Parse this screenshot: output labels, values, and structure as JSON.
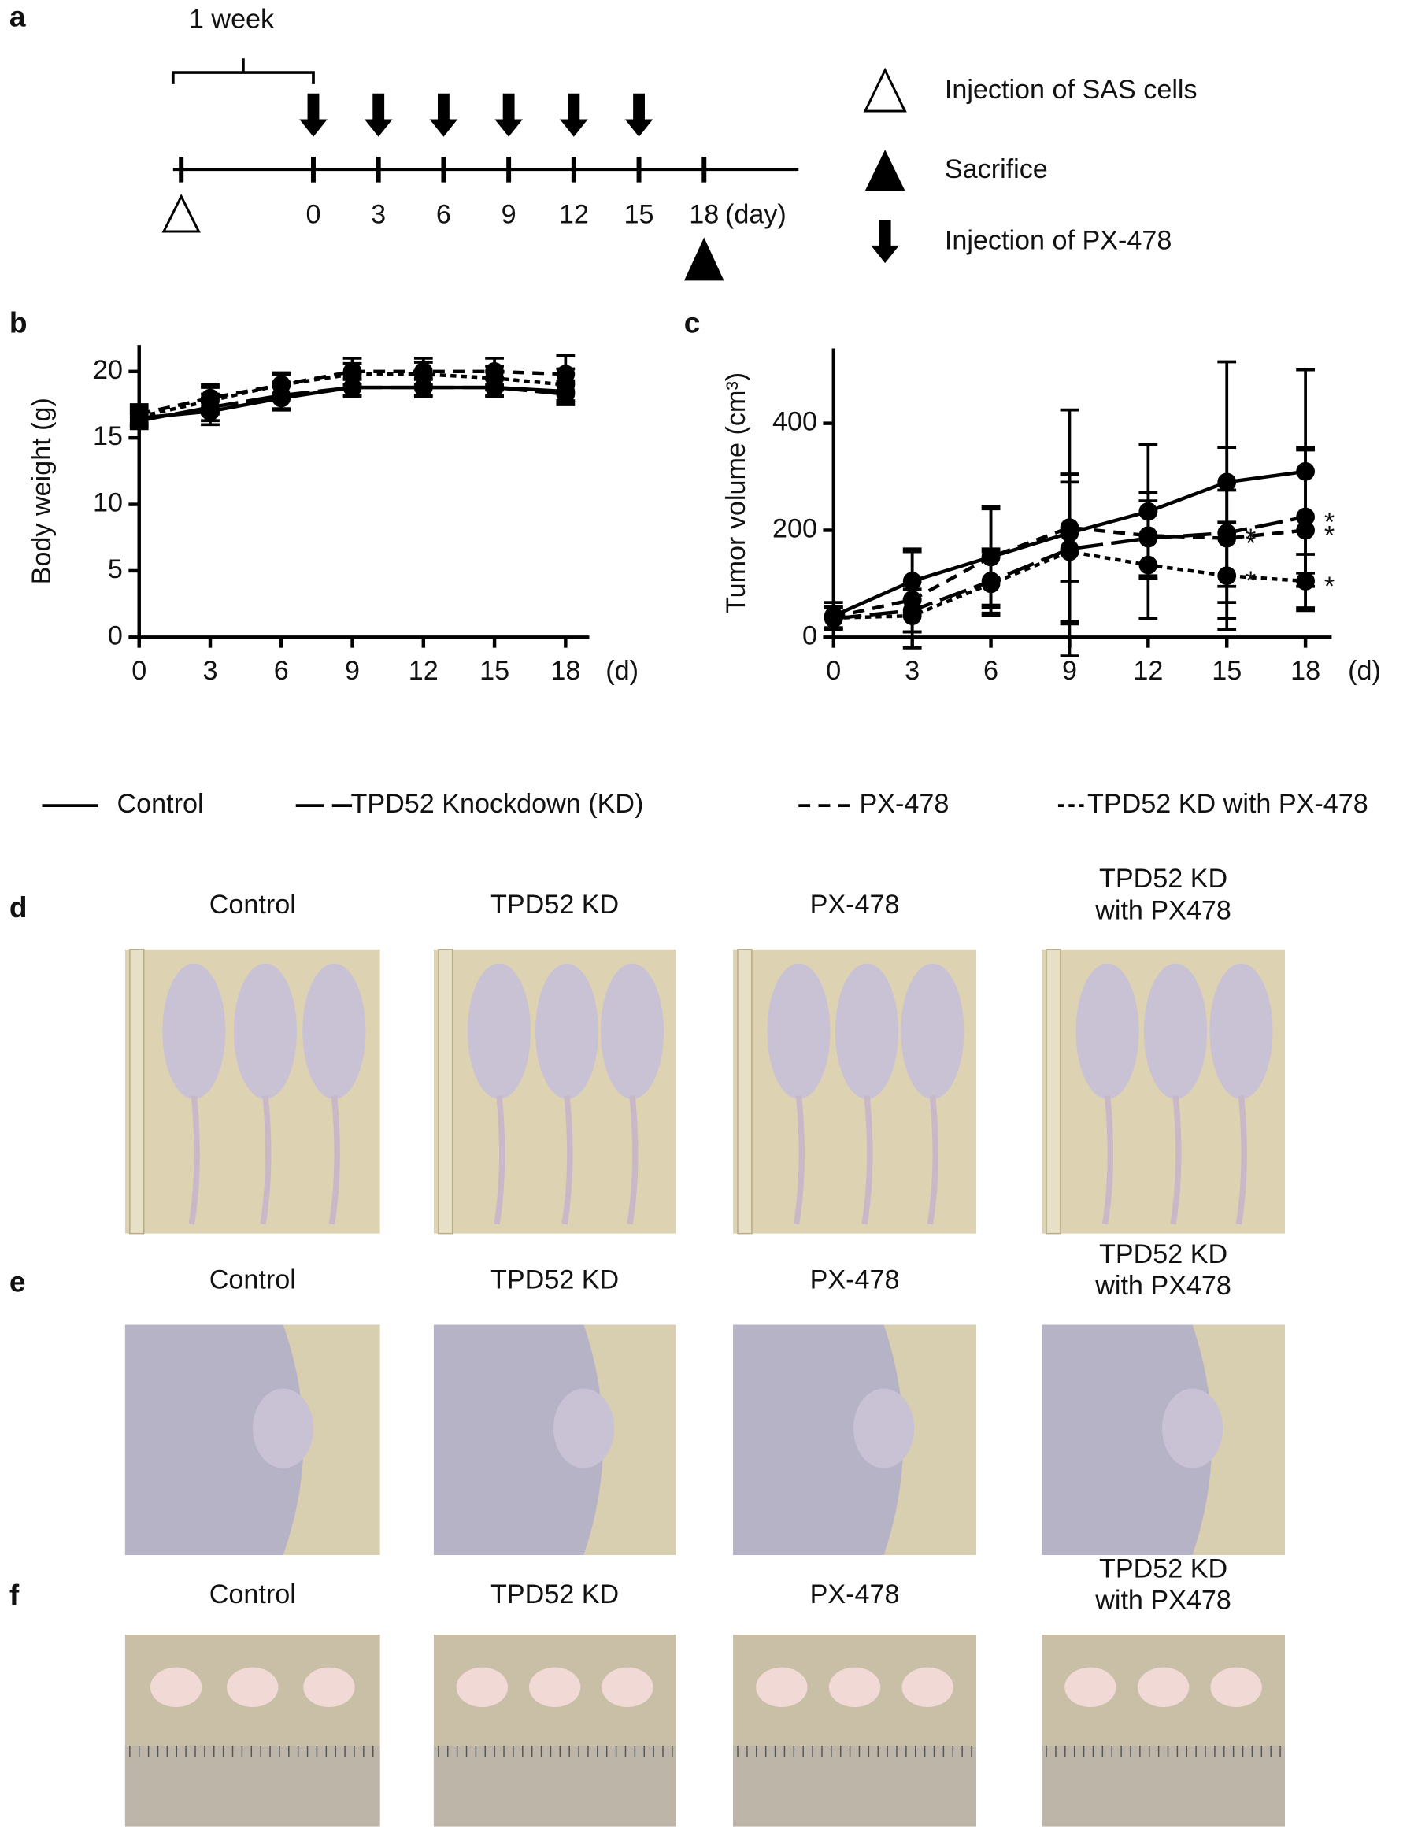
{
  "panels": [
    "a",
    "b",
    "c",
    "d",
    "e",
    "f"
  ],
  "timeline": {
    "interval_label": "1 week",
    "days": [
      0,
      3,
      6,
      9,
      12,
      15,
      18
    ],
    "unit": "(day)",
    "injection_days": [
      0,
      3,
      6,
      9,
      12,
      15
    ],
    "sacrifice_day": 18,
    "legend": [
      "Injection of SAS cells",
      "Sacrifice",
      "Injection of PX-478"
    ]
  },
  "chart_data": [
    {
      "type": "line",
      "ylabel": "Body weight (g)",
      "x_unit": "(d)",
      "x": [
        0,
        3,
        6,
        9,
        12,
        15,
        18
      ],
      "xlim": [
        0,
        19
      ],
      "xticks": [
        0,
        3,
        6,
        9,
        12,
        15,
        18
      ],
      "ylim": [
        0,
        22
      ],
      "yticks": [
        0,
        5,
        10,
        15,
        20
      ],
      "series": [
        {
          "name": "Control",
          "color": "#000000",
          "dash": "solid",
          "values": [
            16.5,
            17.0,
            18.0,
            18.8,
            18.8,
            18.8,
            18.5
          ],
          "errors": [
            0.6,
            1.0,
            0.9,
            0.6,
            0.6,
            0.6,
            0.8
          ]
        },
        {
          "name": "TPD52 Knockdown (KD)",
          "color": "#000000",
          "dash": "long",
          "values": [
            16.3,
            17.3,
            18.2,
            18.8,
            18.8,
            18.8,
            18.3
          ],
          "errors": [
            0.6,
            1.0,
            1.0,
            0.7,
            0.7,
            0.7,
            0.8
          ]
        },
        {
          "name": "PX-478",
          "color": "#000000",
          "dash": "short",
          "values": [
            16.8,
            18.0,
            19.0,
            20.0,
            20.0,
            20.0,
            19.8
          ],
          "errors": [
            0.7,
            1.0,
            0.8,
            1.0,
            1.0,
            1.0,
            1.4
          ]
        },
        {
          "name": "TPD52 KD with PX-478",
          "color": "#000000",
          "dash": "dotted",
          "values": [
            16.6,
            17.8,
            19.0,
            19.8,
            19.8,
            19.5,
            19.0
          ],
          "errors": [
            0.7,
            1.0,
            0.9,
            0.8,
            0.9,
            0.9,
            1.2
          ]
        }
      ]
    },
    {
      "type": "line",
      "ylabel": "Tumor volume (cm³)",
      "x_unit": "(d)",
      "x": [
        0,
        3,
        6,
        9,
        12,
        15,
        18
      ],
      "xlim": [
        0,
        19
      ],
      "xticks": [
        0,
        3,
        6,
        9,
        12,
        15,
        18
      ],
      "ylim": [
        0,
        540
      ],
      "yticks": [
        0,
        200,
        400
      ],
      "series": [
        {
          "name": "Control",
          "color": "#000000",
          "dash": "solid",
          "values": [
            40,
            105,
            150,
            195,
            235,
            290,
            310
          ],
          "errors": [
            25,
            60,
            90,
            230,
            125,
            225,
            190
          ],
          "significance": [
            null,
            null,
            null,
            null,
            null,
            null,
            null
          ]
        },
        {
          "name": "TPD52 Knockdown (KD)",
          "color": "#000000",
          "dash": "long",
          "values": [
            35,
            50,
            105,
            165,
            185,
            195,
            225
          ],
          "errors": [
            20,
            40,
            60,
            140,
            70,
            160,
            130
          ],
          "significance": [
            null,
            null,
            null,
            null,
            null,
            "*",
            "*"
          ]
        },
        {
          "name": "PX-478",
          "color": "#000000",
          "dash": "short",
          "values": [
            38,
            70,
            150,
            205,
            190,
            185,
            200
          ],
          "errors": [
            20,
            90,
            95,
            100,
            80,
            90,
            150
          ],
          "significance": [
            null,
            null,
            null,
            null,
            null,
            "*",
            "*"
          ]
        },
        {
          "name": "TPD52 KD with PX-478",
          "color": "#000000",
          "dash": "dotted",
          "values": [
            36,
            40,
            100,
            160,
            135,
            115,
            105
          ],
          "errors": [
            20,
            30,
            60,
            130,
            100,
            100,
            50
          ],
          "significance": [
            null,
            null,
            null,
            null,
            null,
            "*",
            "*"
          ]
        }
      ]
    }
  ],
  "photo_groups": [
    [
      "Control"
    ],
    [
      "TPD52 KD"
    ],
    [
      "PX-478"
    ],
    [
      "TPD52 KD",
      "with PX478"
    ]
  ]
}
